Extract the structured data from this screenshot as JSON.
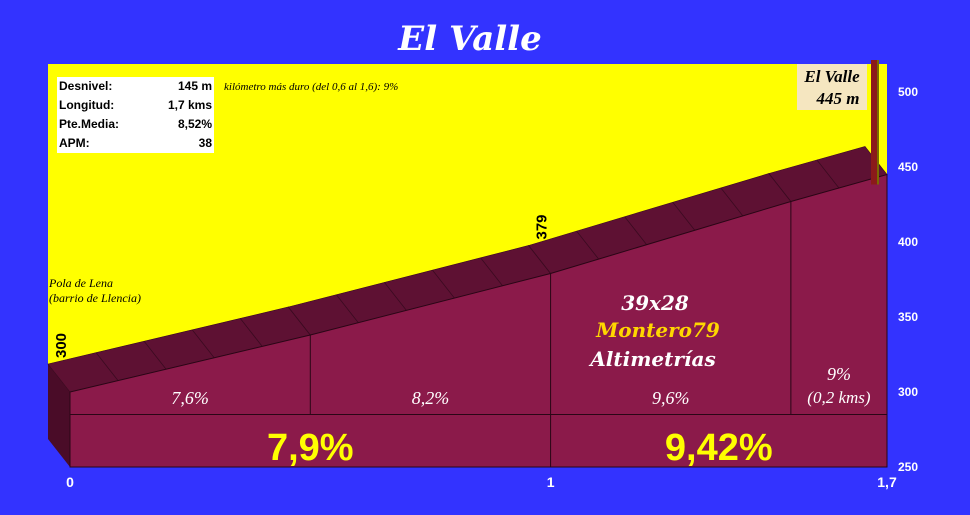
{
  "title": "El Valle",
  "stats": [
    {
      "label": "Desnivel:",
      "value": "145 m"
    },
    {
      "label": "Longitud:",
      "value": "1,7 kms"
    },
    {
      "label": "Pte.Media:",
      "value": "8,52%"
    },
    {
      "label": "APM:",
      "value": "38"
    }
  ],
  "hardest_km_note": "kilómetro más duro (del 0,6 al 1,6):  9%",
  "start_label": [
    "Pola de Lena",
    "(barrio de Llencia)"
  ],
  "summit_label": [
    "El Valle",
    "445 m"
  ],
  "credits": {
    "gear": "39x28",
    "author": "Montero79",
    "site": "Altimetrías"
  },
  "colors": {
    "background": "#3333ff",
    "sky": "#ffff00",
    "profile_face": "#8b1a4a",
    "profile_top": "#5e1133",
    "profile_side": "#4a0c28",
    "credit_author": "#ffd700",
    "summit_box": "#f5e6c0",
    "summit_pole": "#8b1a1a"
  },
  "chart_data": {
    "type": "area",
    "x_unit": "km",
    "y_unit": "m",
    "ylim": [
      250,
      500
    ],
    "xlim": [
      0,
      1.7
    ],
    "y_ticks": [
      "250",
      "300",
      "350",
      "400",
      "450",
      "500"
    ],
    "x_ticks": [
      {
        "x": 0,
        "label": "0"
      },
      {
        "x": 1,
        "label": "1"
      },
      {
        "x": 1.7,
        "label": "1,7"
      }
    ],
    "profile": [
      {
        "x": 0,
        "y": 300
      },
      {
        "x": 0.5,
        "y": 338
      },
      {
        "x": 1.0,
        "y": 379
      },
      {
        "x": 1.5,
        "y": 427
      },
      {
        "x": 1.7,
        "y": 445
      }
    ],
    "point_labels": [
      {
        "x": 0,
        "y": 300,
        "label": "300"
      },
      {
        "x": 1.0,
        "y": 379,
        "label": "379"
      }
    ],
    "segments": [
      {
        "from": 0,
        "to": 0.5,
        "grade": "7,6%"
      },
      {
        "from": 0.5,
        "to": 1.0,
        "grade": "8,2%"
      },
      {
        "from": 1.0,
        "to": 1.5,
        "grade": "9,6%"
      },
      {
        "from": 1.5,
        "to": 1.7,
        "grade": "9%",
        "sub": "(0,2 kms)"
      }
    ],
    "km_grades": [
      {
        "from": 0,
        "to": 1.0,
        "grade": "7,9%"
      },
      {
        "from": 1.0,
        "to": 1.7,
        "grade": "9,42%"
      }
    ]
  }
}
